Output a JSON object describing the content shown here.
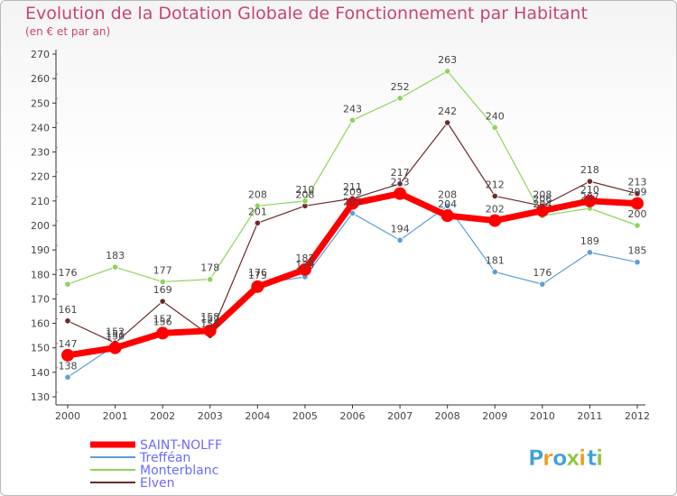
{
  "title": "Evolution de la Dotation Globale de Fonctionnement par Habitant",
  "subtitle": "(en € et par an)",
  "brand": {
    "letters": [
      "P",
      "r",
      "o",
      "x",
      "i",
      "t",
      "i"
    ],
    "colors": [
      "#3fa0d8",
      "#f09a1c",
      "#3fa0d8",
      "#8dc63f",
      "#f09a1c",
      "#3fa0d8",
      "#8dc63f"
    ]
  },
  "chart_data": {
    "type": "line",
    "title": "Evolution de la Dotation Globale de Fonctionnement par Habitant",
    "subtitle": "(en € et par an)",
    "x": [
      "2000",
      "2001",
      "2002",
      "2003",
      "2004",
      "2005",
      "2006",
      "2007",
      "2008",
      "2009",
      "2010",
      "2011",
      "2012"
    ],
    "ylim": [
      130,
      270
    ],
    "yticks": [
      130,
      140,
      150,
      160,
      170,
      180,
      190,
      200,
      210,
      220,
      230,
      240,
      250,
      260,
      270
    ],
    "grid": false,
    "legend_position": "bottom-left",
    "series": [
      {
        "name": "SAINT-NOLFF",
        "color": "#ff0000",
        "values": [
          147,
          150,
          156,
          157,
          175,
          182,
          209,
          213,
          204,
          202,
          206,
          210,
          209
        ],
        "labels": [
          "147",
          "150",
          "156",
          "157",
          "175",
          "182",
          "209",
          "213",
          "204",
          "202",
          "206",
          "210",
          "209"
        ]
      },
      {
        "name": "Trefféan",
        "color": "#5c9ed6",
        "values": [
          138,
          151,
          157,
          158,
          176,
          179,
          205,
          194,
          208,
          181,
          176,
          189,
          185
        ],
        "labels": [
          "138",
          "151",
          "157",
          "158",
          "176",
          "179",
          "205",
          "194",
          "208",
          "181",
          "176",
          "189",
          "185"
        ]
      },
      {
        "name": "Monterblanc",
        "color": "#8fd45a",
        "values": [
          176,
          183,
          177,
          178,
          208,
          210,
          243,
          252,
          263,
          240,
          204,
          207,
          200
        ],
        "labels": [
          "176",
          "183",
          "177",
          "178",
          "208",
          "210",
          "243",
          "252",
          "263",
          "240",
          "204",
          "207",
          "200"
        ]
      },
      {
        "name": "Elven",
        "color": "#6b2a2a",
        "values": [
          161,
          152,
          169,
          155,
          201,
          208,
          211,
          217,
          242,
          212,
          208,
          218,
          213
        ],
        "labels": [
          "161",
          "152",
          "169",
          "155",
          "201",
          "208",
          "211",
          "217",
          "242",
          "212",
          "208",
          "218",
          "213"
        ]
      }
    ]
  }
}
